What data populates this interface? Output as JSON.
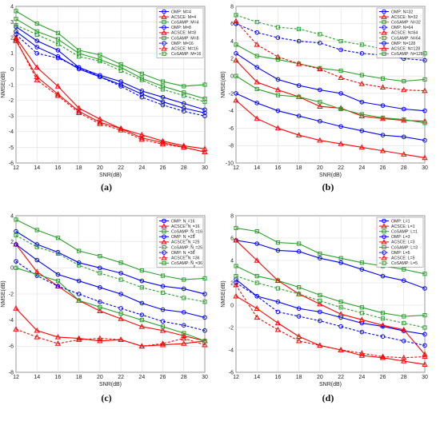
{
  "chart_data": [
    {
      "type": "line",
      "panel": "(a)",
      "xlabel": "SNR(dB)",
      "ylabel": "NMSE(dB)",
      "xlim": [
        12,
        30
      ],
      "ylim": [
        -6,
        4
      ],
      "xticks": [
        12,
        14,
        16,
        18,
        20,
        22,
        24,
        26,
        28,
        30
      ],
      "yticks": [
        4,
        3,
        2,
        1,
        0,
        -1,
        -2,
        -3,
        -4,
        -5,
        -6
      ],
      "x": [
        12,
        14,
        16,
        18,
        20,
        22,
        24,
        26,
        28,
        30
      ],
      "grid": true,
      "legend": "top-right",
      "series": [
        {
          "name": "OMP: M=4",
          "color": "#0000ff",
          "marker": "o",
          "dashed": false,
          "values": [
            2.7,
            1.8,
            1.2,
            0.1,
            -0.4,
            -0.8,
            -1.4,
            -1.8,
            -2.2,
            -2.6
          ]
        },
        {
          "name": "ACSCE: M=4",
          "color": "#ff0000",
          "marker": "^",
          "dashed": false,
          "values": [
            2.0,
            0.1,
            -1.1,
            -2.5,
            -3.2,
            -3.8,
            -4.2,
            -4.6,
            -4.9,
            -5.1
          ]
        },
        {
          "name": "CoSAMP: M=4",
          "color": "#2ca02c",
          "marker": "s",
          "dashed": false,
          "values": [
            3.7,
            2.9,
            2.3,
            1.2,
            0.9,
            0.3,
            -0.3,
            -0.8,
            -1.1,
            -1.0
          ]
        },
        {
          "name": "OMP: M=8",
          "color": "#0000ff",
          "marker": "o",
          "dashed": false,
          "values": [
            2.4,
            1.4,
            0.8,
            0.0,
            -0.5,
            -1.0,
            -1.6,
            -2.1,
            -2.5,
            -2.8
          ]
        },
        {
          "name": "ACSCE: M=8",
          "color": "#ff0000",
          "marker": "^",
          "dashed": false,
          "values": [
            1.8,
            -0.5,
            -1.6,
            -2.7,
            -3.4,
            -3.8,
            -4.4,
            -4.7,
            -5.0,
            -5.3
          ]
        },
        {
          "name": "CoSAMP: M=8",
          "color": "#2ca02c",
          "marker": "s",
          "dashed": false,
          "values": [
            3.2,
            2.4,
            1.9,
            1.0,
            0.6,
            0.1,
            -0.6,
            -1.1,
            -1.5,
            -1.9
          ]
        },
        {
          "name": "OMP: M=16",
          "color": "#0000ff",
          "marker": "o",
          "dashed": true,
          "values": [
            2.2,
            1.0,
            0.7,
            0.1,
            -0.5,
            -1.1,
            -1.8,
            -2.3,
            -2.7,
            -3.0
          ]
        },
        {
          "name": "ACSCE: M=16",
          "color": "#ff0000",
          "marker": "^",
          "dashed": true,
          "values": [
            1.9,
            -0.7,
            -1.7,
            -2.8,
            -3.5,
            -3.9,
            -4.5,
            -4.8,
            -5.0,
            -5.3
          ]
        },
        {
          "name": "CoSAMP: M=16",
          "color": "#2ca02c",
          "marker": "s",
          "dashed": true,
          "values": [
            2.8,
            2.2,
            1.6,
            0.8,
            0.5,
            -0.1,
            -0.7,
            -1.3,
            -1.7,
            -2.1
          ]
        }
      ]
    },
    {
      "type": "line",
      "panel": "(b)",
      "xlabel": "SNR(dB)",
      "ylabel": "NMSE(dB)",
      "xlim": [
        12,
        30
      ],
      "ylim": [
        -10,
        8
      ],
      "xticks": [
        12,
        14,
        16,
        18,
        20,
        22,
        24,
        26,
        28,
        30
      ],
      "yticks": [
        8,
        6,
        4,
        2,
        0,
        -2,
        -4,
        -6,
        -8,
        -10
      ],
      "x": [
        12,
        14,
        16,
        18,
        20,
        22,
        24,
        26,
        28,
        30
      ],
      "grid": true,
      "legend": "top-right",
      "series": [
        {
          "name": "OMP: N=32",
          "color": "#0000ff",
          "marker": "o",
          "dashed": false,
          "values": [
            2.6,
            1.0,
            -0.4,
            -1.1,
            -1.6,
            -2.0,
            -3.0,
            -3.4,
            -3.8,
            -4.0
          ]
        },
        {
          "name": "ACSCE: N=32",
          "color": "#ff0000",
          "marker": "^",
          "dashed": false,
          "values": [
            -2.8,
            -4.9,
            -6.0,
            -6.8,
            -7.4,
            -7.8,
            -8.2,
            -8.6,
            -9.0,
            -9.4
          ]
        },
        {
          "name": "CoSAMP: N=32",
          "color": "#2ca02c",
          "marker": "s",
          "dashed": false,
          "values": [
            3.6,
            2.3,
            1.9,
            1.4,
            0.9,
            0.6,
            0.1,
            -0.3,
            -0.6,
            -0.4
          ]
        },
        {
          "name": "OMP: N=64",
          "color": "#0000ff",
          "marker": "o",
          "dashed": true,
          "values": [
            6.0,
            5.0,
            4.4,
            4.0,
            3.8,
            3.0,
            2.6,
            2.4,
            2.0,
            1.8
          ]
        },
        {
          "name": "ACSCE: N=64",
          "color": "#ff0000",
          "marker": "^",
          "dashed": true,
          "values": [
            6.3,
            3.6,
            2.2,
            1.4,
            0.8,
            -0.2,
            -0.9,
            -1.3,
            -1.6,
            -1.7
          ]
        },
        {
          "name": "CoSAMP: N=64",
          "color": "#2ca02c",
          "marker": "s",
          "dashed": true,
          "values": [
            7.0,
            6.2,
            5.6,
            5.4,
            4.8,
            4.0,
            3.6,
            3.1,
            2.8,
            2.6
          ]
        },
        {
          "name": "OMP: N=128",
          "color": "#0000ff",
          "marker": "o",
          "dashed": false,
          "values": [
            -2.0,
            -3.1,
            -4.0,
            -4.6,
            -5.2,
            -5.8,
            -6.3,
            -6.8,
            -7.0,
            -7.4
          ]
        },
        {
          "name": "ACSCE: N=128",
          "color": "#ff0000",
          "marker": "^",
          "dashed": false,
          "values": [
            1.8,
            -0.7,
            -1.6,
            -2.4,
            -3.5,
            -3.7,
            -4.6,
            -4.9,
            -5.1,
            -5.2
          ]
        },
        {
          "name": "CoSAMP: N=128",
          "color": "#2ca02c",
          "marker": "s",
          "dashed": false,
          "values": [
            0.0,
            -1.5,
            -2.2,
            -2.4,
            -3.0,
            -3.8,
            -4.4,
            -4.8,
            -5.0,
            -5.4
          ]
        }
      ]
    },
    {
      "type": "line",
      "panel": "(c)",
      "xlabel": "SNR(dB)",
      "ylabel": "NMSE(dB)",
      "xlim": [
        12,
        30
      ],
      "ylim": [
        -8,
        4
      ],
      "xticks": [
        12,
        14,
        16,
        18,
        20,
        22,
        24,
        26,
        28,
        30
      ],
      "yticks": [
        4,
        2,
        0,
        -2,
        -4,
        -6,
        -8
      ],
      "x": [
        12,
        14,
        16,
        18,
        20,
        22,
        24,
        26,
        28,
        30
      ],
      "grid": true,
      "legend": "top-right",
      "series": [
        {
          "name": "OMP: N_p=16",
          "color": "#0000ff",
          "marker": "o",
          "dashed": false,
          "values": [
            2.8,
            1.8,
            1.2,
            0.4,
            0.0,
            -0.4,
            -1.0,
            -1.4,
            -1.6,
            -2.0
          ]
        },
        {
          "name": "ACSCE: N_p=16",
          "color": "#ff0000",
          "marker": "^",
          "dashed": false,
          "values": [
            1.8,
            -0.3,
            -1.4,
            -2.5,
            -3.3,
            -3.9,
            -4.5,
            -4.8,
            -5.2,
            -5.6
          ]
        },
        {
          "name": "CoSAMP: N_p=16",
          "color": "#2ca02c",
          "marker": "s",
          "dashed": false,
          "values": [
            3.7,
            2.9,
            2.3,
            1.3,
            0.9,
            0.4,
            -0.2,
            -0.6,
            -0.9,
            -0.8
          ]
        },
        {
          "name": "OMP: N_p=25",
          "color": "#0000ff",
          "marker": "o",
          "dashed": false,
          "values": [
            1.8,
            0.6,
            -0.5,
            -1.0,
            -1.5,
            -2.0,
            -2.7,
            -3.2,
            -3.4,
            -3.8
          ]
        },
        {
          "name": "ACSCE: N_p=25",
          "color": "#ff0000",
          "marker": "^",
          "dashed": false,
          "values": [
            -3.1,
            -4.8,
            -5.3,
            -5.4,
            -5.6,
            -5.5,
            -6.0,
            -5.9,
            -5.8,
            -5.6
          ]
        },
        {
          "name": "CoSAMP: N_p=25",
          "color": "#2ca02c",
          "marker": "s",
          "dashed": true,
          "values": [
            2.5,
            1.6,
            1.1,
            0.2,
            -0.4,
            -0.9,
            -1.5,
            -1.9,
            -2.3,
            -2.6
          ]
        },
        {
          "name": "OMP: N_p=36",
          "color": "#0000ff",
          "marker": "o",
          "dashed": true,
          "values": [
            0.5,
            -0.6,
            -1.4,
            -2.0,
            -2.6,
            -3.1,
            -3.6,
            -4.1,
            -4.4,
            -4.8
          ]
        },
        {
          "name": "ACSCE: N_p=36",
          "color": "#ff0000",
          "marker": "^",
          "dashed": true,
          "values": [
            -4.7,
            -5.3,
            -5.8,
            -5.5,
            -5.4,
            -5.5,
            -6.0,
            -5.8,
            -5.4,
            -5.9
          ]
        },
        {
          "name": "CoSAMP: N_p=36",
          "color": "#2ca02c",
          "marker": "s",
          "dashed": false,
          "values": [
            0.0,
            -0.5,
            -1.0,
            -2.5,
            -3.0,
            -3.5,
            -4.0,
            -4.5,
            -5.0,
            -5.6
          ]
        }
      ]
    },
    {
      "type": "line",
      "panel": "(d)",
      "xlabel": "SNR(dB)",
      "ylabel": "NMSE(dB)",
      "xlim": [
        12,
        30
      ],
      "ylim": [
        -6,
        8
      ],
      "xticks": [
        12,
        14,
        16,
        18,
        20,
        22,
        24,
        26,
        28,
        30
      ],
      "yticks": [
        8,
        6,
        4,
        2,
        0,
        -2,
        -4,
        -6
      ],
      "x": [
        12,
        14,
        16,
        18,
        20,
        22,
        24,
        26,
        28,
        30
      ],
      "grid": true,
      "legend": "top-right",
      "series": [
        {
          "name": "OMP: L=1",
          "color": "#0000ff",
          "marker": "o",
          "dashed": false,
          "values": [
            2.3,
            0.8,
            0.3,
            -0.3,
            -0.6,
            -1.1,
            -1.6,
            -1.9,
            -2.3,
            -2.6
          ]
        },
        {
          "name": "ACSCE: L=1",
          "color": "#ff0000",
          "marker": "^",
          "dashed": false,
          "values": [
            0.8,
            -0.3,
            -1.6,
            -2.8,
            -3.6,
            -4.0,
            -4.5,
            -4.7,
            -5.0,
            -5.3
          ]
        },
        {
          "name": "CoSAMP: L=1",
          "color": "#2ca02c",
          "marker": "s",
          "dashed": false,
          "values": [
            3.5,
            2.6,
            2.2,
            1.6,
            0.9,
            0.3,
            -0.2,
            -0.7,
            -1.0,
            -0.9
          ]
        },
        {
          "name": "OMP: L=3",
          "color": "#0000ff",
          "marker": "o",
          "dashed": false,
          "values": [
            5.8,
            5.5,
            4.9,
            4.8,
            4.2,
            3.8,
            3.2,
            2.6,
            2.2,
            1.5
          ]
        },
        {
          "name": "ACSCE: L=3",
          "color": "#ff0000",
          "marker": "^",
          "dashed": false,
          "values": [
            5.8,
            4.0,
            2.2,
            1.0,
            0.1,
            -0.8,
            -1.3,
            -1.8,
            -2.2,
            -4.4
          ]
        },
        {
          "name": "CoSAMP: L=3",
          "color": "#2ca02c",
          "marker": "s",
          "dashed": false,
          "values": [
            6.9,
            6.6,
            5.6,
            5.5,
            4.6,
            4.2,
            3.8,
            3.5,
            3.2,
            2.8
          ]
        },
        {
          "name": "OMP: L=5",
          "color": "#0000ff",
          "marker": "o",
          "dashed": true,
          "values": [
            2.0,
            0.8,
            -0.6,
            -1.0,
            -1.4,
            -1.9,
            -2.4,
            -2.8,
            -3.2,
            -3.6
          ]
        },
        {
          "name": "ACSCE: L=5",
          "color": "#ff0000",
          "marker": "^",
          "dashed": true,
          "values": [
            1.8,
            -1.1,
            -2.2,
            -3.2,
            -3.6,
            -4.0,
            -4.3,
            -4.6,
            -4.7,
            -4.6
          ]
        },
        {
          "name": "CoSAMP: L=5",
          "color": "#2ca02c",
          "marker": "s",
          "dashed": true,
          "values": [
            2.6,
            2.0,
            1.5,
            1.0,
            0.4,
            -0.2,
            -0.7,
            -1.2,
            -1.6,
            -2.0
          ]
        }
      ]
    }
  ]
}
